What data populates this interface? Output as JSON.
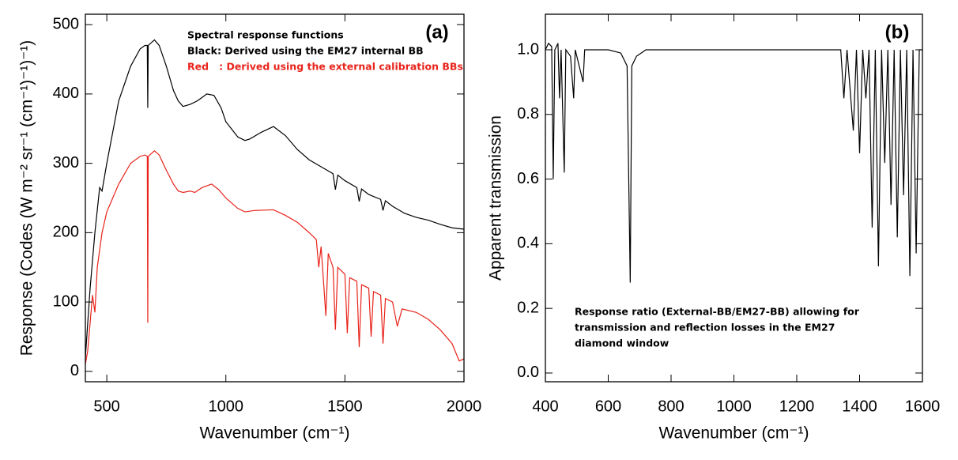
{
  "chart_data": [
    {
      "type": "line",
      "xlabel": "Wavenumber (cm⁻¹)",
      "ylabel": "Response (Codes (W m⁻² sr⁻¹ (cm⁻¹)⁻¹)⁻¹)",
      "panel_label": "(a)",
      "annotations": [
        {
          "text": "Spectral response functions",
          "color": "#000000"
        },
        {
          "text": "Black: Derived using the EM27 internal BB",
          "color": "#000000"
        },
        {
          "text": "Red   : Derived using the external calibration BBs",
          "color": "#e8231a"
        }
      ],
      "xlim": [
        410,
        2000
      ],
      "ylim": [
        -15,
        515
      ],
      "xticks": [
        500,
        1000,
        1500,
        2000
      ],
      "yticks": [
        0,
        100,
        200,
        300,
        400,
        500
      ],
      "series": [
        {
          "color": "#000000",
          "x": [
            410,
            430,
            450,
            470,
            480,
            500,
            550,
            600,
            640,
            660,
            670,
            672,
            674,
            700,
            720,
            750,
            780,
            800,
            820,
            850,
            880,
            920,
            950,
            980,
            1000,
            1050,
            1080,
            1100,
            1150,
            1200,
            1250,
            1300,
            1350,
            1400,
            1450,
            1460,
            1470,
            1500,
            1550,
            1560,
            1570,
            1600,
            1650,
            1660,
            1670,
            1700,
            1750,
            1800,
            1850,
            1900,
            1950,
            2000
          ],
          "values": [
            20,
            120,
            200,
            265,
            260,
            300,
            390,
            440,
            465,
            470,
            470,
            380,
            470,
            478,
            470,
            440,
            405,
            390,
            382,
            385,
            390,
            400,
            398,
            380,
            360,
            338,
            333,
            335,
            345,
            353,
            340,
            320,
            305,
            295,
            285,
            262,
            283,
            275,
            265,
            245,
            263,
            255,
            248,
            232,
            246,
            238,
            228,
            222,
            218,
            212,
            207,
            205
          ]
        },
        {
          "color": "#e8231a",
          "x": [
            410,
            420,
            440,
            450,
            460,
            480,
            500,
            550,
            600,
            640,
            660,
            670,
            672,
            674,
            700,
            720,
            750,
            780,
            800,
            820,
            850,
            870,
            900,
            940,
            970,
            1000,
            1050,
            1080,
            1120,
            1200,
            1250,
            1300,
            1350,
            1380,
            1390,
            1400,
            1420,
            1430,
            1450,
            1460,
            1470,
            1500,
            1510,
            1520,
            1550,
            1560,
            1570,
            1600,
            1610,
            1620,
            1650,
            1660,
            1670,
            1700,
            1720,
            1740,
            1800,
            1850,
            1900,
            1950,
            1980,
            2000
          ],
          "values": [
            10,
            30,
            110,
            85,
            150,
            200,
            230,
            270,
            300,
            310,
            312,
            310,
            70,
            310,
            318,
            312,
            290,
            270,
            260,
            258,
            260,
            258,
            265,
            270,
            262,
            250,
            235,
            230,
            232,
            233,
            225,
            215,
            200,
            190,
            150,
            180,
            80,
            170,
            150,
            60,
            150,
            140,
            55,
            135,
            130,
            35,
            125,
            120,
            50,
            115,
            110,
            40,
            105,
            100,
            65,
            90,
            85,
            75,
            60,
            40,
            15,
            18
          ]
        }
      ]
    },
    {
      "type": "line",
      "xlabel": "Wavenumber (cm⁻¹)",
      "ylabel": "Apparent  transmission",
      "panel_label": "(b)",
      "annotations": [
        {
          "text": "Response ratio (External-BB/EM27-BB) allowing for",
          "color": "#000000"
        },
        {
          "text": "transmission and reflection losses in the EM27",
          "color": "#000000"
        },
        {
          "text": "diamond window",
          "color": "#000000"
        }
      ],
      "xlim": [
        400,
        1600
      ],
      "ylim": [
        -0.027,
        1.11
      ],
      "xticks": [
        400,
        600,
        800,
        1000,
        1200,
        1400,
        1600
      ],
      "yticks": [
        {
          "value": 0,
          "label": "0.0"
        },
        0.2,
        0.4,
        0.6,
        0.8,
        {
          "value": 1,
          "label": "1.0"
        }
      ],
      "series": [
        {
          "color": "#000000",
          "x": [
            400,
            410,
            420,
            425,
            430,
            440,
            445,
            450,
            460,
            465,
            480,
            490,
            495,
            520,
            525,
            550,
            600,
            640,
            660,
            670,
            675,
            690,
            720,
            800,
            1000,
            1200,
            1300,
            1340,
            1350,
            1360,
            1380,
            1390,
            1400,
            1410,
            1420,
            1430,
            1440,
            1450,
            1460,
            1470,
            1480,
            1490,
            1500,
            1510,
            1520,
            1530,
            1540,
            1550,
            1560,
            1570,
            1580,
            1590,
            1600
          ],
          "values": [
            1.0,
            1.02,
            1.01,
            0.6,
            1.0,
            1.02,
            0.85,
            1.0,
            0.62,
            1.0,
            0.98,
            0.85,
            1.0,
            0.9,
            1.0,
            1.0,
            1.0,
            0.99,
            0.95,
            0.28,
            0.95,
            0.98,
            1.0,
            1.0,
            1.0,
            1.0,
            1.0,
            1.0,
            0.85,
            1.0,
            0.75,
            1.0,
            0.68,
            1.0,
            0.85,
            1.0,
            0.45,
            1.0,
            0.33,
            1.0,
            0.65,
            1.0,
            0.52,
            1.0,
            0.42,
            1.0,
            0.55,
            1.0,
            0.3,
            1.0,
            0.37,
            1.0,
            1.0
          ]
        }
      ]
    }
  ]
}
